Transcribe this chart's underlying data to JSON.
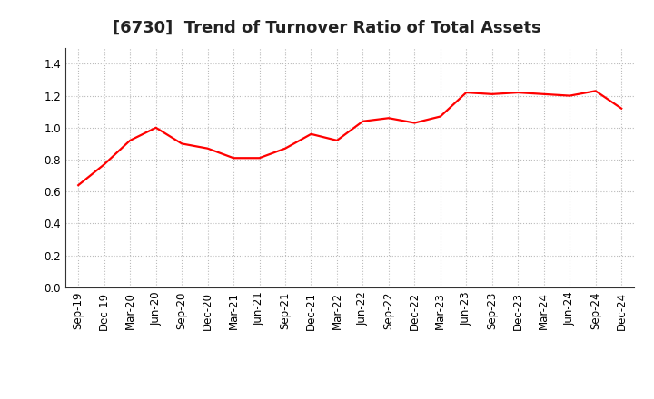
{
  "title": "[6730]  Trend of Turnover Ratio of Total Assets",
  "x_labels": [
    "Sep-19",
    "Dec-19",
    "Mar-20",
    "Jun-20",
    "Sep-20",
    "Dec-20",
    "Mar-21",
    "Jun-21",
    "Sep-21",
    "Dec-21",
    "Mar-22",
    "Jun-22",
    "Sep-22",
    "Dec-22",
    "Mar-23",
    "Jun-23",
    "Sep-23",
    "Dec-23",
    "Mar-24",
    "Jun-24",
    "Sep-24",
    "Dec-24"
  ],
  "y_values": [
    0.64,
    0.77,
    0.92,
    1.0,
    0.9,
    0.87,
    0.81,
    0.81,
    0.87,
    0.96,
    0.92,
    1.04,
    1.06,
    1.03,
    1.07,
    1.22,
    1.21,
    1.22,
    1.21,
    1.2,
    1.23,
    1.12
  ],
  "line_color": "#ff0000",
  "line_width": 1.6,
  "ylim": [
    0.0,
    1.5
  ],
  "yticks": [
    0.0,
    0.2,
    0.4,
    0.6,
    0.8,
    1.0,
    1.2,
    1.4
  ],
  "grid_color": "#bbbbbb",
  "grid_linestyle": ":",
  "background_color": "#ffffff",
  "title_fontsize": 13,
  "tick_fontsize": 8.5
}
